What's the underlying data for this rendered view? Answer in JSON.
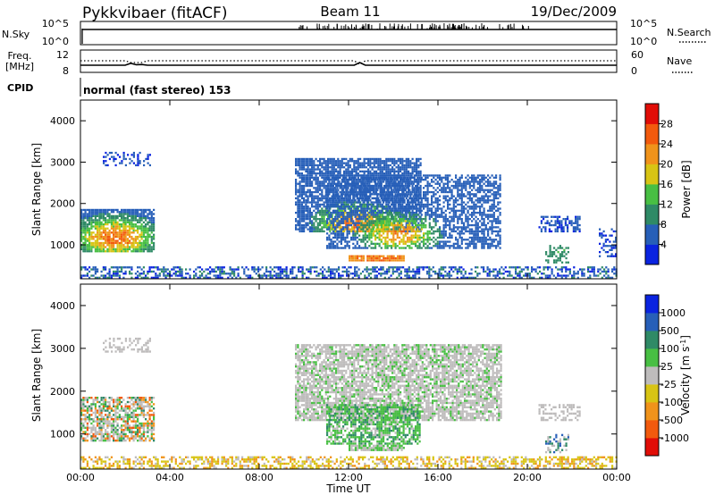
{
  "header": {
    "radar": "Pykkvibaer (fitACF)",
    "beam": "Beam 11",
    "date": "19/Dec/2009"
  },
  "noise_panel": {
    "left_label": "N.Sky",
    "left_ticks": [
      "10^5",
      "10^0"
    ],
    "right_label": "N.Search",
    "right_ticks": [
      "10^5",
      "10^0"
    ]
  },
  "freq_panel": {
    "left_label_1": "Freq.",
    "left_label_2": "[MHz]",
    "left_ticks": [
      "12",
      "8"
    ],
    "right_label": "Nave",
    "right_ticks": [
      "60",
      "0"
    ]
  },
  "cpid_panel": {
    "label": "CPID",
    "text": "normal (fast stereo) 153"
  },
  "x_axis": {
    "label": "Time UT",
    "tick_labels": [
      "00:00",
      "04:00",
      "08:00",
      "12:00",
      "16:00",
      "20:00",
      "00:00"
    ]
  },
  "chart_data": [
    {
      "type": "heatmap",
      "variable": "Power",
      "xlabel": "Time UT",
      "ylabel": "Slant Range [km]",
      "colorbar_label": "Power [dB]",
      "x_range_hours": [
        0,
        24
      ],
      "y_range_km": [
        180,
        4500
      ],
      "y_tick_labels": [
        "1000",
        "2000",
        "3000",
        "4000"
      ],
      "colorbar_ticks": [
        "4",
        "8",
        "12",
        "16",
        "20",
        "24",
        "28"
      ],
      "colorbar_range": [
        0,
        32
      ],
      "colors": [
        "#0a23e0",
        "#275fb8",
        "#2f8a66",
        "#48bf43",
        "#d8c414",
        "#f0931b",
        "#f25a0d",
        "#e10d07"
      ],
      "regions": [
        {
          "t": [
            0.0,
            3.3
          ],
          "r": [
            820,
            1850
          ],
          "pmin": 5,
          "pmax": 27,
          "core_t": 1.5,
          "core_r": 1150,
          "density": 0.85
        },
        {
          "t": [
            1.0,
            3.1
          ],
          "r": [
            2900,
            3250
          ],
          "pmin": 2,
          "pmax": 9,
          "density": 0.35
        },
        {
          "t": [
            9.6,
            15.2
          ],
          "r": [
            1300,
            3100
          ],
          "pmin": 4,
          "pmax": 26,
          "core_t": 12.3,
          "core_r": 1500,
          "density": 0.8
        },
        {
          "t": [
            11.0,
            18.8
          ],
          "r": [
            900,
            2700
          ],
          "pmin": 4,
          "pmax": 24,
          "core_t": 14.2,
          "core_r": 1250,
          "density": 0.6
        },
        {
          "t": [
            12.0,
            14.5
          ],
          "r": [
            600,
            720
          ],
          "pmin": 22,
          "pmax": 28,
          "density": 0.95
        },
        {
          "t": [
            20.5,
            22.3
          ],
          "r": [
            1300,
            1700
          ],
          "pmin": 3,
          "pmax": 9,
          "density": 0.5
        },
        {
          "t": [
            20.8,
            21.8
          ],
          "r": [
            550,
            1000
          ],
          "pmin": 8,
          "pmax": 16,
          "density": 0.45
        },
        {
          "t": [
            23.2,
            24.0
          ],
          "r": [
            700,
            1400
          ],
          "pmin": 3,
          "pmax": 8,
          "density": 0.35
        },
        {
          "t": [
            0.0,
            24.0
          ],
          "r": [
            180,
            450
          ],
          "pmin": 2,
          "pmax": 16,
          "density": 0.5
        }
      ]
    },
    {
      "type": "heatmap",
      "variable": "Velocity",
      "xlabel": "Time UT",
      "ylabel": "Slant Range [km]",
      "colorbar_label": "Velocity [m s^-1]",
      "x_range_hours": [
        0,
        24
      ],
      "y_range_km": [
        180,
        4500
      ],
      "y_tick_labels": [
        "1000",
        "2000",
        "3000",
        "4000"
      ],
      "colorbar_ticks": [
        "1000",
        "500",
        "100",
        "25",
        "-25",
        "-100",
        "-500",
        "-1000"
      ],
      "colors": [
        "#0a23e0",
        "#275fb8",
        "#2f8a66",
        "#48bf43",
        "#bebcbc",
        "#d8c414",
        "#f0931b",
        "#f25a0d",
        "#e10d07"
      ],
      "regions": [
        {
          "t": [
            0.0,
            3.3
          ],
          "r": [
            820,
            1850
          ],
          "palette": [
            4,
            4,
            4,
            6,
            7,
            3,
            2
          ],
          "density": 0.7
        },
        {
          "t": [
            1.0,
            3.1
          ],
          "r": [
            2900,
            3250
          ],
          "palette": [
            4,
            4,
            4
          ],
          "density": 0.35
        },
        {
          "t": [
            9.6,
            18.8
          ],
          "r": [
            1300,
            3100
          ],
          "palette": [
            4,
            4,
            4,
            4,
            3
          ],
          "density": 0.75
        },
        {
          "t": [
            11.0,
            15.2
          ],
          "r": [
            750,
            1700
          ],
          "palette": [
            3,
            3,
            4,
            2
          ],
          "density": 0.7
        },
        {
          "t": [
            12.0,
            14.5
          ],
          "r": [
            600,
            720
          ],
          "palette": [
            3,
            4
          ],
          "density": 0.9
        },
        {
          "t": [
            20.5,
            22.3
          ],
          "r": [
            1300,
            1700
          ],
          "palette": [
            4,
            4
          ],
          "density": 0.5
        },
        {
          "t": [
            20.8,
            21.8
          ],
          "r": [
            550,
            1000
          ],
          "palette": [
            2,
            1,
            4
          ],
          "density": 0.45
        },
        {
          "t": [
            0.0,
            24.0
          ],
          "r": [
            180,
            450
          ],
          "palette": [
            5,
            6,
            5,
            4
          ],
          "density": 0.5
        }
      ]
    }
  ]
}
